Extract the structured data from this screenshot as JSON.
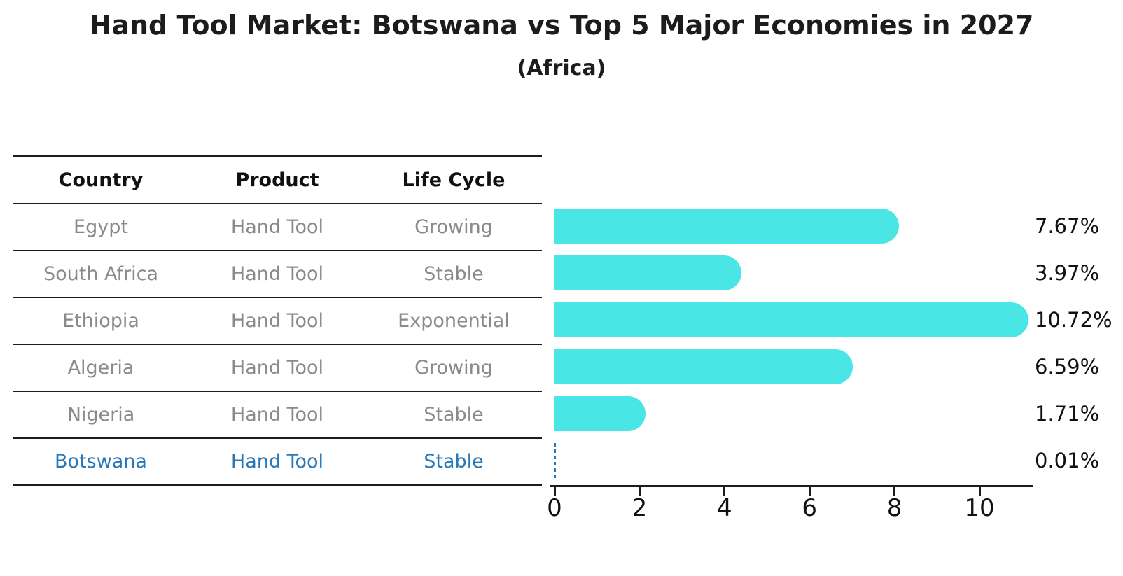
{
  "title": "Hand Tool Market: Botswana vs Top 5 Major Economies in 2027",
  "subtitle": "(Africa)",
  "table": {
    "headers": [
      "Country",
      "Product",
      "Life Cycle"
    ],
    "rows": [
      {
        "country": "Egypt",
        "product": "Hand Tool",
        "life_cycle": "Growing"
      },
      {
        "country": "South Africa",
        "product": "Hand Tool",
        "life_cycle": "Stable"
      },
      {
        "country": "Ethiopia",
        "product": "Hand Tool",
        "life_cycle": "Exponential"
      },
      {
        "country": "Algeria",
        "product": "Hand Tool",
        "life_cycle": "Growing"
      },
      {
        "country": "Nigeria",
        "product": "Hand Tool",
        "life_cycle": "Stable"
      },
      {
        "country": "Botswana",
        "product": "Hand Tool",
        "life_cycle": "Stable"
      }
    ]
  },
  "chart_data": {
    "type": "bar",
    "orientation": "horizontal",
    "title": "Hand Tool Market: Botswana vs Top 5 Major Economies in 2027",
    "subtitle": "(Africa)",
    "categories": [
      "Egypt",
      "South Africa",
      "Ethiopia",
      "Algeria",
      "Nigeria",
      "Botswana"
    ],
    "values": [
      7.67,
      3.97,
      10.72,
      6.59,
      1.71,
      0.01
    ],
    "value_labels": [
      "7.67%",
      "3.97%",
      "10.72%",
      "6.59%",
      "1.71%",
      "0.01%"
    ],
    "x_ticks": [
      "0",
      "2",
      "4",
      "6",
      "8",
      "10"
    ],
    "xlim": [
      0,
      11.3
    ],
    "grid": false,
    "legend": "none",
    "highlight_index": 5
  },
  "colors": {
    "bar": "#4ae6e6",
    "highlight": "#2878b8",
    "muted_text": "#8a8a8a",
    "ink": "#1c1c1c"
  }
}
